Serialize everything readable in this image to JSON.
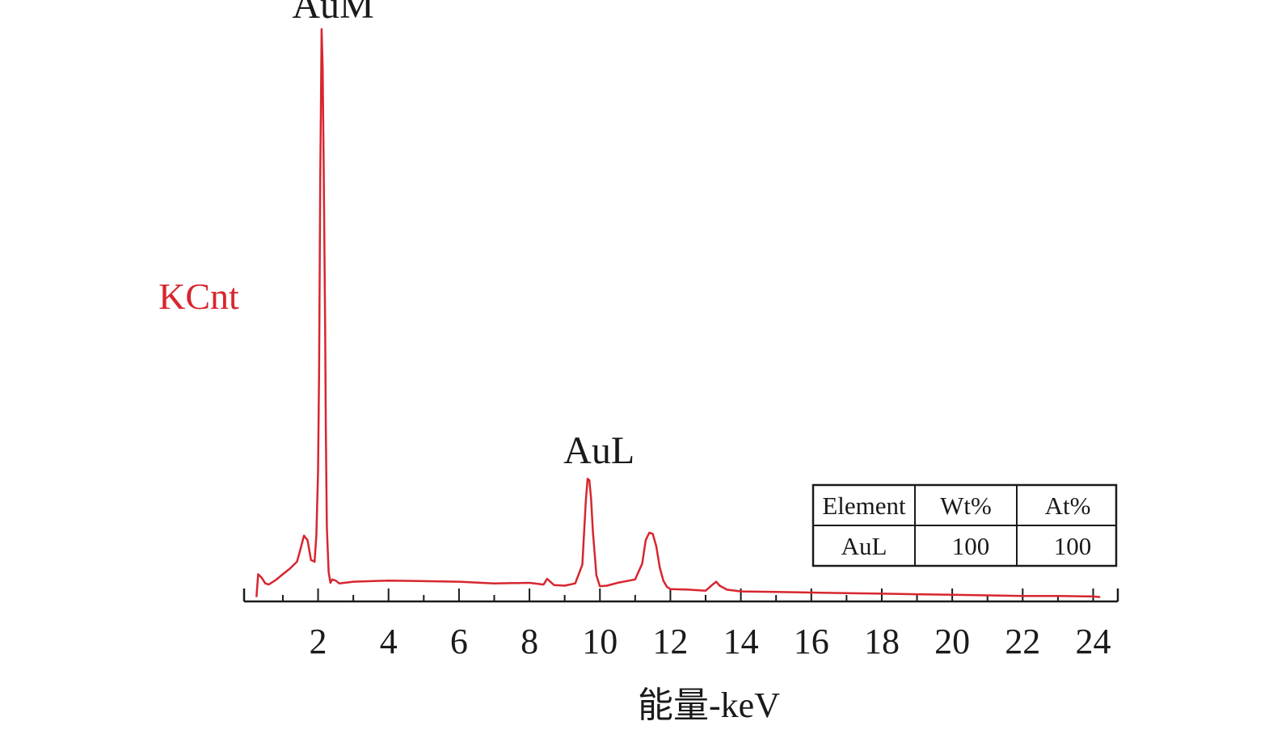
{
  "chart_data": {
    "type": "line",
    "xlabel": "能量-keV",
    "ylabel": "KCnt",
    "xlim": [
      -0.1,
      24.7
    ],
    "ylim": [
      0,
      100
    ],
    "x_ticks": [
      2,
      4,
      6,
      8,
      10,
      12,
      14,
      16,
      18,
      20,
      22,
      24
    ],
    "grid": false,
    "colors": {
      "series": "#d7262f",
      "text": "#1a1a1a",
      "axis": "#1a1a1a"
    },
    "annotations": [
      {
        "text": "AuM",
        "x": 2.15,
        "y": 100
      },
      {
        "text": "AuL",
        "x": 9.7,
        "y": 21.7
      }
    ],
    "series": [
      {
        "x": [
          0.25,
          0.3,
          0.4,
          0.5,
          0.6,
          0.8,
          1.0,
          1.2,
          1.4,
          1.5,
          1.6,
          1.7,
          1.8,
          1.9,
          1.95,
          2.0,
          2.03,
          2.06,
          2.08,
          2.1,
          2.13,
          2.16,
          2.2,
          2.22,
          2.25,
          2.3,
          2.35,
          2.4,
          2.5,
          2.6,
          3.0,
          3.5,
          4.0,
          5.0,
          6.0,
          7.0,
          8.0,
          8.4,
          8.5,
          8.7,
          9.0,
          9.3,
          9.5,
          9.6,
          9.65,
          9.7,
          9.75,
          9.8,
          9.9,
          10.0,
          10.2,
          10.5,
          11.0,
          11.2,
          11.3,
          11.4,
          11.5,
          11.6,
          11.7,
          11.8,
          11.9,
          12.0,
          12.5,
          13.0,
          13.2,
          13.3,
          13.4,
          13.6,
          14.0,
          15.0,
          16.0,
          17.0,
          18.0,
          19.0,
          20.0,
          21.0,
          22.0,
          23.0,
          24.0,
          24.2
        ],
        "y": [
          0.2,
          4.2,
          3.6,
          2.6,
          2.4,
          3.2,
          4.2,
          5.2,
          6.4,
          8.6,
          11.0,
          10.2,
          6.7,
          6.4,
          11.0,
          22.2,
          40.0,
          73.2,
          85.5,
          100.0,
          93.2,
          75.5,
          47.5,
          30.0,
          12.4,
          4.6,
          2.7,
          3.3,
          3.1,
          2.6,
          2.9,
          3.0,
          3.1,
          3.0,
          2.9,
          2.6,
          2.7,
          2.4,
          3.4,
          2.3,
          2.2,
          2.6,
          5.9,
          17.1,
          21.0,
          20.7,
          17.5,
          11.8,
          4.0,
          2.1,
          2.2,
          2.7,
          3.3,
          6.1,
          10.2,
          11.5,
          11.3,
          9.1,
          5.4,
          3.1,
          2.0,
          1.6,
          1.5,
          1.3,
          2.4,
          2.9,
          2.2,
          1.5,
          1.2,
          1.1,
          1.0,
          0.9,
          0.8,
          0.7,
          0.6,
          0.5,
          0.4,
          0.4,
          0.3,
          0.2
        ]
      }
    ],
    "table": {
      "headers": [
        "Element",
        "Wt%",
        "At%"
      ],
      "rows": [
        [
          "AuL",
          "100",
          "100"
        ]
      ]
    }
  }
}
